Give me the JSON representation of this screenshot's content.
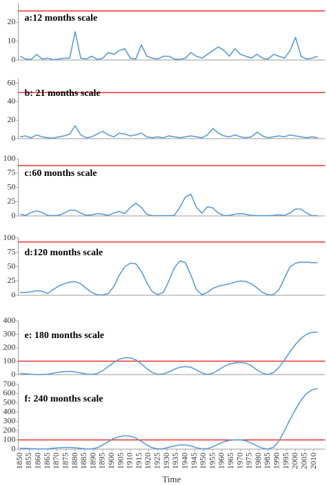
{
  "chart_data": [
    {
      "type": "line",
      "title": "a:12 months scale",
      "xlim": [
        1849,
        2016
      ],
      "ylim": [
        0,
        30
      ],
      "yticks": [
        0,
        10,
        20
      ],
      "reference_line": {
        "value": 26,
        "color": "#e8312b"
      },
      "series": [
        {
          "color": "#5b9bd5",
          "x": [
            1850,
            1853,
            1856,
            1859,
            1862,
            1865,
            1868,
            1871,
            1874,
            1877,
            1880,
            1883,
            1886,
            1889,
            1892,
            1895,
            1898,
            1901,
            1904,
            1907,
            1910,
            1913,
            1916,
            1919,
            1922,
            1925,
            1928,
            1931,
            1934,
            1937,
            1940,
            1943,
            1946,
            1949,
            1952,
            1955,
            1958,
            1961,
            1964,
            1967,
            1970,
            1973,
            1976,
            1979,
            1982,
            1985,
            1988,
            1991,
            1994,
            1997,
            2000,
            2003,
            2006,
            2009,
            2012
          ],
          "values": [
            2,
            0.5,
            0.3,
            3,
            0.5,
            1,
            0.2,
            0.5,
            1,
            1,
            15,
            1,
            0.5,
            2,
            0.3,
            1,
            4,
            3,
            5,
            6,
            1,
            0.5,
            8,
            2,
            1,
            0.5,
            2,
            2,
            0.5,
            0.3,
            1,
            4,
            2,
            1,
            3,
            5,
            7,
            5,
            2,
            6,
            3,
            2,
            1,
            3,
            1,
            0.5,
            3,
            2,
            1,
            5,
            12,
            2,
            0.5,
            1,
            2
          ]
        }
      ]
    },
    {
      "type": "line",
      "title": "b: 21 months scale",
      "xlim": [
        1849,
        2016
      ],
      "ylim": [
        0,
        65
      ],
      "yticks": [
        0,
        20,
        40,
        60
      ],
      "reference_line": {
        "value": 50,
        "color": "#e8312b"
      },
      "series": [
        {
          "color": "#5b9bd5",
          "x": [
            1850,
            1853,
            1856,
            1859,
            1862,
            1865,
            1868,
            1871,
            1874,
            1877,
            1880,
            1883,
            1886,
            1889,
            1892,
            1895,
            1898,
            1901,
            1904,
            1907,
            1910,
            1913,
            1916,
            1919,
            1922,
            1925,
            1928,
            1931,
            1934,
            1937,
            1940,
            1943,
            1946,
            1949,
            1952,
            1955,
            1958,
            1961,
            1964,
            1967,
            1970,
            1973,
            1976,
            1979,
            1982,
            1985,
            1988,
            1991,
            1994,
            1997,
            2000,
            2003,
            2006,
            2009,
            2012
          ],
          "values": [
            2,
            3,
            1,
            4,
            2,
            1,
            0.5,
            2,
            3,
            5,
            14,
            4,
            1,
            2,
            5,
            8,
            4,
            2,
            6,
            5,
            3,
            4,
            6,
            2,
            1,
            2,
            1,
            3,
            2,
            1,
            2,
            3,
            2,
            1,
            4,
            11,
            6,
            3,
            2,
            4,
            2,
            1,
            2,
            7,
            3,
            1,
            2,
            3,
            2,
            4,
            3,
            2,
            1,
            2,
            1
          ]
        }
      ]
    },
    {
      "type": "line",
      "title": "c:60 months scale",
      "xlim": [
        1849,
        2016
      ],
      "ylim": [
        0,
        100
      ],
      "yticks": [
        0,
        25,
        50,
        75,
        100
      ],
      "reference_line": {
        "value": 88,
        "color": "#e8312b"
      },
      "series": [
        {
          "color": "#5b9bd5",
          "x": [
            1850,
            1853,
            1856,
            1859,
            1862,
            1865,
            1868,
            1871,
            1874,
            1877,
            1880,
            1883,
            1886,
            1889,
            1892,
            1895,
            1898,
            1901,
            1904,
            1907,
            1910,
            1913,
            1916,
            1919,
            1922,
            1925,
            1928,
            1931,
            1934,
            1937,
            1940,
            1943,
            1946,
            1949,
            1952,
            1955,
            1958,
            1961,
            1964,
            1967,
            1970,
            1973,
            1976,
            1979,
            1982,
            1985,
            1988,
            1991,
            1994,
            1997,
            2000,
            2003,
            2006,
            2009,
            2012
          ],
          "values": [
            3,
            1,
            6,
            9,
            6,
            1,
            0.5,
            1,
            5,
            10,
            10,
            5,
            1,
            2,
            4,
            3,
            1,
            5,
            8,
            4,
            15,
            22,
            15,
            3,
            0.5,
            0.5,
            0.5,
            0.5,
            1,
            15,
            33,
            38,
            15,
            5,
            16,
            14,
            5,
            0.5,
            1,
            3,
            4,
            3,
            1,
            0.5,
            0.5,
            0.5,
            1,
            2,
            1,
            5,
            12,
            12,
            5,
            0.5,
            0.5
          ]
        }
      ]
    },
    {
      "type": "line",
      "title": "d:120 months scale",
      "xlim": [
        1849,
        2016
      ],
      "ylim": [
        0,
        100
      ],
      "yticks": [
        0,
        25,
        50,
        75,
        100
      ],
      "reference_line": {
        "value": 93,
        "color": "#e8312b"
      },
      "series": [
        {
          "color": "#5b9bd5",
          "x": [
            1850,
            1853,
            1856,
            1859,
            1862,
            1865,
            1868,
            1871,
            1874,
            1877,
            1880,
            1883,
            1886,
            1889,
            1892,
            1895,
            1898,
            1901,
            1904,
            1907,
            1910,
            1913,
            1916,
            1919,
            1922,
            1925,
            1928,
            1931,
            1934,
            1937,
            1940,
            1943,
            1946,
            1949,
            1952,
            1955,
            1958,
            1961,
            1964,
            1967,
            1970,
            1973,
            1976,
            1979,
            1982,
            1985,
            1988,
            1991,
            1994,
            1997,
            2000,
            2003,
            2006,
            2009,
            2012
          ],
          "values": [
            5,
            5,
            6,
            8,
            7,
            3,
            10,
            16,
            20,
            23,
            24,
            20,
            12,
            5,
            1,
            0.5,
            3,
            15,
            35,
            50,
            56,
            55,
            42,
            22,
            6,
            1,
            5,
            25,
            48,
            60,
            57,
            35,
            10,
            1,
            5,
            12,
            16,
            18,
            20,
            23,
            25,
            24,
            20,
            13,
            5,
            1,
            1,
            10,
            30,
            50,
            56,
            58,
            58,
            57,
            57
          ]
        }
      ]
    },
    {
      "type": "line",
      "title": "e: 180 months scale",
      "xlim": [
        1849,
        2016
      ],
      "ylim": [
        0,
        400
      ],
      "yticks": [
        0,
        100,
        200,
        300,
        400
      ],
      "reference_line": {
        "value": 100,
        "color": "#e8312b"
      },
      "series": [
        {
          "color": "#5b9bd5",
          "x": [
            1850,
            1853,
            1856,
            1859,
            1862,
            1865,
            1868,
            1871,
            1874,
            1877,
            1880,
            1883,
            1886,
            1889,
            1892,
            1895,
            1898,
            1901,
            1904,
            1907,
            1910,
            1913,
            1916,
            1919,
            1922,
            1925,
            1928,
            1931,
            1934,
            1937,
            1940,
            1943,
            1946,
            1949,
            1952,
            1955,
            1958,
            1961,
            1964,
            1967,
            1970,
            1973,
            1976,
            1979,
            1982,
            1985,
            1988,
            1991,
            1994,
            1997,
            2000,
            2003,
            2006,
            2009,
            2012
          ],
          "values": [
            8,
            6,
            3,
            1,
            1,
            3,
            10,
            18,
            22,
            24,
            20,
            12,
            4,
            1,
            8,
            30,
            60,
            90,
            115,
            125,
            125,
            110,
            80,
            45,
            15,
            2,
            5,
            20,
            40,
            55,
            60,
            55,
            35,
            12,
            2,
            10,
            35,
            60,
            78,
            88,
            90,
            85,
            65,
            35,
            10,
            1,
            15,
            55,
            110,
            170,
            225,
            270,
            300,
            315,
            315
          ]
        }
      ]
    },
    {
      "type": "line",
      "title": "f: 240 months scale",
      "xlabel": "Time",
      "xlim": [
        1849,
        2016
      ],
      "ylim": [
        0,
        700
      ],
      "yticks": [
        0,
        100,
        200,
        300,
        400,
        500,
        600,
        700
      ],
      "reference_line": {
        "value": 100,
        "color": "#e8312b"
      },
      "xticks": [
        1850,
        1855,
        1860,
        1865,
        1870,
        1875,
        1880,
        1885,
        1890,
        1895,
        1900,
        1905,
        1910,
        1915,
        1920,
        1925,
        1930,
        1935,
        1940,
        1945,
        1950,
        1955,
        1960,
        1965,
        1970,
        1975,
        1980,
        1985,
        1990,
        1995,
        2000,
        2005,
        2010
      ],
      "series": [
        {
          "color": "#5b9bd5",
          "x": [
            1850,
            1853,
            1856,
            1859,
            1862,
            1865,
            1868,
            1871,
            1874,
            1877,
            1880,
            1883,
            1886,
            1889,
            1892,
            1895,
            1898,
            1901,
            1904,
            1907,
            1910,
            1913,
            1916,
            1919,
            1922,
            1925,
            1928,
            1931,
            1934,
            1937,
            1940,
            1943,
            1946,
            1949,
            1952,
            1955,
            1958,
            1961,
            1964,
            1967,
            1970,
            1973,
            1976,
            1979,
            1982,
            1985,
            1988,
            1991,
            1994,
            1997,
            2000,
            2003,
            2006,
            2009,
            2012
          ],
          "values": [
            10,
            8,
            5,
            3,
            2,
            4,
            10,
            15,
            18,
            18,
            15,
            8,
            2,
            2,
            15,
            45,
            80,
            115,
            135,
            145,
            140,
            120,
            85,
            45,
            15,
            2,
            5,
            20,
            35,
            45,
            45,
            35,
            15,
            3,
            5,
            25,
            55,
            80,
            95,
            100,
            100,
            90,
            65,
            35,
            10,
            1,
            20,
            90,
            200,
            320,
            430,
            530,
            600,
            640,
            655
          ]
        }
      ]
    }
  ]
}
